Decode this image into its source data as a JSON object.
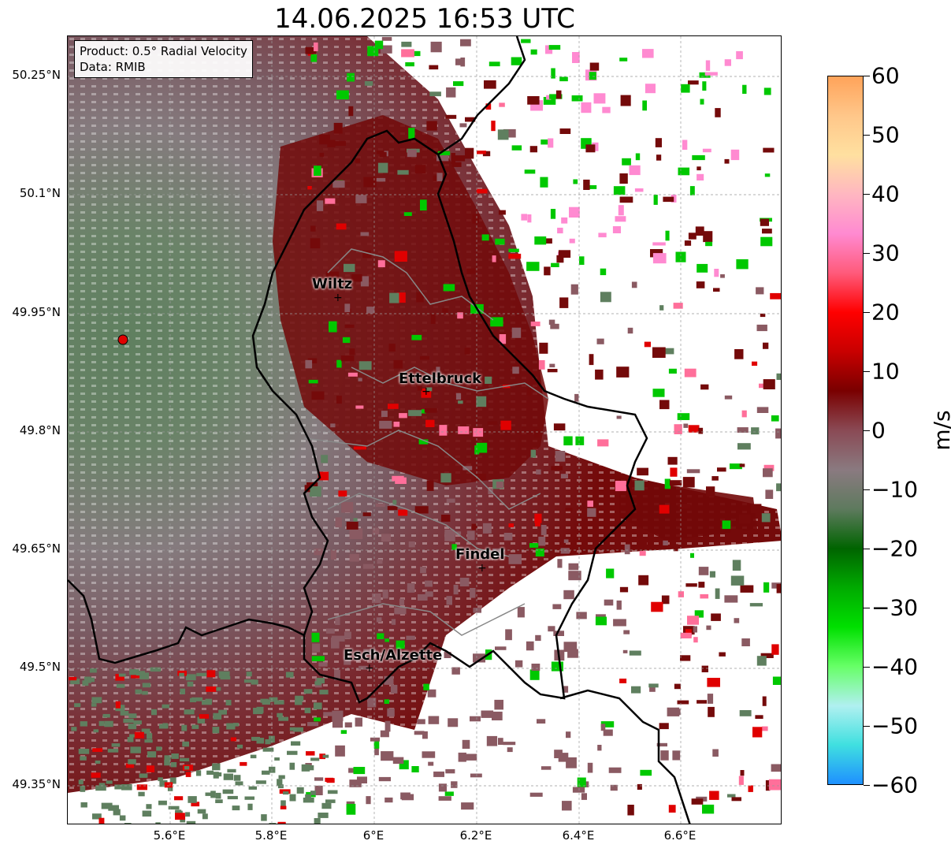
{
  "title": "14.06.2025 16:53 UTC",
  "info_box": {
    "product": "Product: 0.5° Radial Velocity",
    "data": "Data: RMIB"
  },
  "lat_labels": [
    "50.25°N",
    "50.1°N",
    "49.95°N",
    "49.8°N",
    "49.65°N",
    "49.5°N",
    "49.35°N"
  ],
  "lon_labels": [
    "5.6°E",
    "5.8°E",
    "6°E",
    "6.2°E",
    "6.4°E",
    "6.6°E"
  ],
  "cities": [
    {
      "name": "Wiltz"
    },
    {
      "name": "Ettelbruck"
    },
    {
      "name": "Findel"
    },
    {
      "name": "Esch/Alzette"
    }
  ],
  "radar_site": {
    "color": "#e00000"
  },
  "colorbar": {
    "unit": "m/s",
    "min": -60,
    "max": 60,
    "ticks": [
      "60",
      "50",
      "40",
      "30",
      "20",
      "10",
      "0",
      "−10",
      "−20",
      "−30",
      "−40",
      "−50",
      "−60"
    ],
    "colors_top_to_bottom": [
      "#ffa35a",
      "#ffc78a",
      "#ffe0a0",
      "#ffb6c1",
      "#ff8ad1",
      "#ff5a7a",
      "#ff0000",
      "#c80000",
      "#7a0000",
      "#8a4a55",
      "#8a7a80",
      "#5e7a5e",
      "#006400",
      "#00aa00",
      "#00e000",
      "#66ff66",
      "#b0f0f0",
      "#40e0e0",
      "#1e90ff"
    ]
  },
  "chart_data": {
    "type": "map",
    "title": "14.06.2025 16:53 UTC",
    "lat_range": [
      49.3,
      50.3
    ],
    "lon_range": [
      5.4,
      6.8
    ],
    "radar_lon": 5.5,
    "radar_lat": 49.915,
    "velocity_range_ms": [
      -60,
      60
    ]
  }
}
